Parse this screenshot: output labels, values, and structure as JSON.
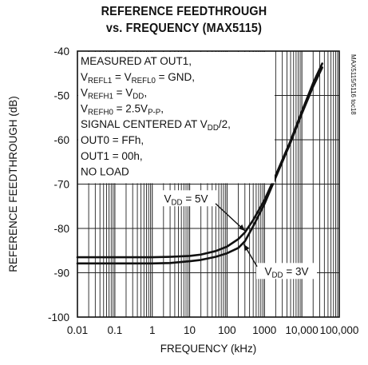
{
  "chart_data": {
    "type": "line",
    "title_line1": "REFERENCE FEEDTHROUGH",
    "title_line2": "vs. FREQUENCY (MAX5115)",
    "xlabel": "FREQUENCY (kHz)",
    "ylabel": "REFERENCE FEEDTHROUGH (dB)",
    "x_scale": "log",
    "xlim": [
      0.01,
      100000
    ],
    "ylim": [
      -100,
      -40
    ],
    "x_ticks": [
      0.01,
      0.1,
      1,
      10,
      100,
      1000,
      10000,
      100000
    ],
    "x_tick_labels": [
      "0.01",
      "0.1",
      "1",
      "10",
      "100",
      "1000",
      "10,000",
      "100,000"
    ],
    "y_ticks": [
      -40,
      -50,
      -60,
      -70,
      -80,
      -90,
      -100
    ],
    "y_tick_labels": [
      "-40",
      "-50",
      "-60",
      "-70",
      "-80",
      "-90",
      "-100"
    ],
    "grid": true,
    "side_tag": "MAX5115/5116 toc18",
    "conditions": [
      {
        "parts": [
          {
            "t": "MEASURED AT OUT1,"
          }
        ]
      },
      {
        "parts": [
          {
            "t": "V"
          },
          {
            "t": "REFL1",
            "sub": true
          },
          {
            "t": " = V"
          },
          {
            "t": "REFL0",
            "sub": true
          },
          {
            "t": " = GND,"
          }
        ]
      },
      {
        "parts": [
          {
            "t": "V"
          },
          {
            "t": "REFH1",
            "sub": true
          },
          {
            "t": " = V"
          },
          {
            "t": "DD",
            "sub": true
          },
          {
            "t": ","
          }
        ]
      },
      {
        "parts": [
          {
            "t": "V"
          },
          {
            "t": "REFH0",
            "sub": true
          },
          {
            "t": " = 2.5V"
          },
          {
            "t": "P-P",
            "sub": true
          },
          {
            "t": ","
          }
        ]
      },
      {
        "parts": [
          {
            "t": "SIGNAL CENTERED AT V"
          },
          {
            "t": "DD",
            "sub": true
          },
          {
            "t": "/2,"
          }
        ]
      },
      {
        "parts": [
          {
            "t": "OUT0 = FFh,"
          }
        ]
      },
      {
        "parts": [
          {
            "t": "OUT1 = 00h,"
          }
        ]
      },
      {
        "parts": [
          {
            "t": "NO LOAD"
          }
        ]
      }
    ],
    "series": [
      {
        "name": "VDD = 5V",
        "label_parts": [
          {
            "t": "V"
          },
          {
            "t": "DD",
            "sub": true
          },
          {
            "t": " = 5V"
          }
        ],
        "x": [
          0.01,
          0.1,
          1,
          3,
          10,
          20,
          50,
          100,
          200,
          300,
          500,
          1000,
          2000,
          5000,
          10000,
          20000,
          35000
        ],
        "y": [
          -86.5,
          -86.5,
          -86.5,
          -86.4,
          -86.2,
          -85.9,
          -85.1,
          -84.1,
          -82.4,
          -80.9,
          -78.1,
          -73.6,
          -68.0,
          -60.2,
          -53.6,
          -47.2,
          -42.8
        ]
      },
      {
        "name": "VDD = 3V",
        "label_parts": [
          {
            "t": "V"
          },
          {
            "t": "DD",
            "sub": true
          },
          {
            "t": " = 3V"
          }
        ],
        "x": [
          0.01,
          0.1,
          1,
          3,
          10,
          20,
          50,
          100,
          200,
          300,
          500,
          1000,
          2000,
          5000,
          10000,
          20000,
          35000
        ],
        "y": [
          -87.9,
          -87.9,
          -87.9,
          -87.8,
          -87.4,
          -87.1,
          -86.4,
          -85.6,
          -84.4,
          -82.9,
          -79.5,
          -74.5,
          -68.5,
          -60.6,
          -54.1,
          -48.0,
          -43.7
        ]
      }
    ]
  }
}
